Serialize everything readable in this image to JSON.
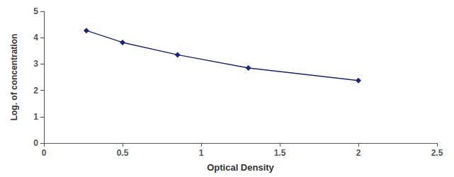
{
  "chart_data": {
    "type": "line",
    "x": [
      0.27,
      0.5,
      0.85,
      1.3,
      2.0
    ],
    "values": [
      4.27,
      3.82,
      3.35,
      2.85,
      2.37
    ],
    "color": "#1a237e",
    "marker": "diamond",
    "xlabel": "Optical Density",
    "ylabel": "Log. of concentration",
    "xlim": [
      0,
      2.5
    ],
    "ylim": [
      0,
      5
    ],
    "xticks": [
      0,
      0.5,
      1.0,
      1.5,
      2.0,
      2.5
    ],
    "yticks": [
      0,
      1,
      2,
      3,
      4,
      5
    ],
    "grid": false
  }
}
